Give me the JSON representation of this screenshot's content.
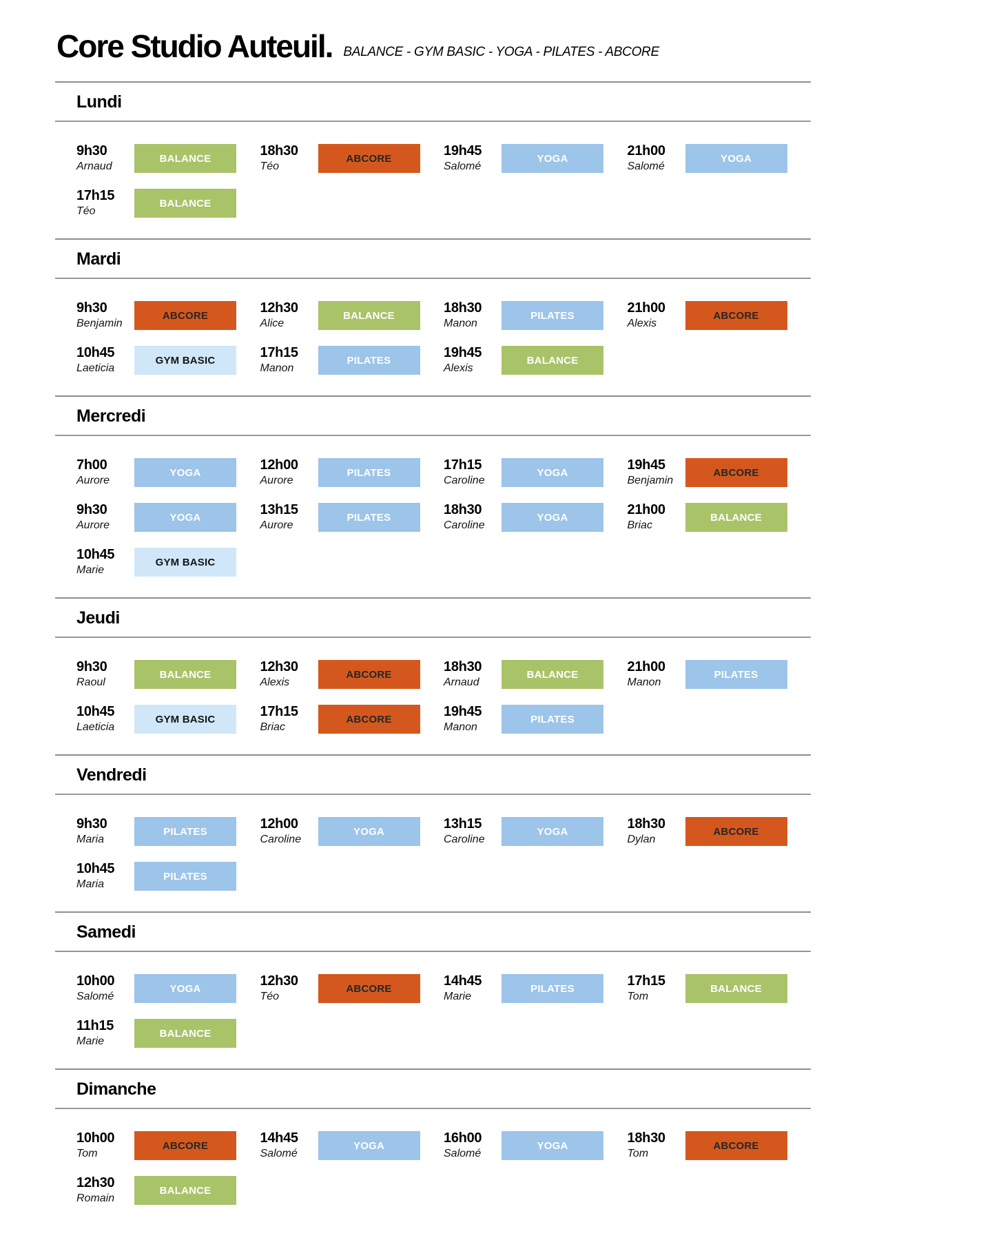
{
  "title": "Core Studio Auteuil.",
  "subtitle": "BALANCE - GYM BASIC - YOGA - PILATES - ABCORE",
  "class_types": {
    "BALANCE": {
      "bg": "#a9c369",
      "fg": "#ffffff"
    },
    "GYM BASIC": {
      "bg": "#cfe7f9",
      "fg": "#141414"
    },
    "YOGA": {
      "bg": "#9dc4e9",
      "fg": "#ffffff"
    },
    "PILATES": {
      "bg": "#9dc4e9",
      "fg": "#ffffff"
    },
    "ABCORE": {
      "bg": "#d4581d",
      "fg": "#262626"
    }
  },
  "rule_color": "#8e8e8e",
  "days": [
    {
      "name": "Lundi",
      "entries": [
        {
          "time": "9h30",
          "instructor": "Arnaud",
          "class": "BALANCE"
        },
        {
          "time": "18h30",
          "instructor": "Téo",
          "class": "ABCORE"
        },
        {
          "time": "19h45",
          "instructor": "Salomé",
          "class": "YOGA"
        },
        {
          "time": "21h00",
          "instructor": "Salomé",
          "class": "YOGA"
        },
        {
          "time": "17h15",
          "instructor": "Téo",
          "class": "BALANCE"
        }
      ]
    },
    {
      "name": "Mardi",
      "entries": [
        {
          "time": "9h30",
          "instructor": "Benjamin",
          "class": "ABCORE"
        },
        {
          "time": "12h30",
          "instructor": "Alice",
          "class": "BALANCE"
        },
        {
          "time": "18h30",
          "instructor": "Manon",
          "class": "PILATES"
        },
        {
          "time": "21h00",
          "instructor": "Alexis",
          "class": "ABCORE"
        },
        {
          "time": "10h45",
          "instructor": "Laeticia",
          "class": "GYM BASIC"
        },
        {
          "time": "17h15",
          "instructor": "Manon",
          "class": "PILATES"
        },
        {
          "time": "19h45",
          "instructor": "Alexis",
          "class": "BALANCE"
        }
      ]
    },
    {
      "name": "Mercredi",
      "entries": [
        {
          "time": "7h00",
          "instructor": "Aurore",
          "class": "YOGA"
        },
        {
          "time": "12h00",
          "instructor": "Aurore",
          "class": "PILATES"
        },
        {
          "time": "17h15",
          "instructor": "Caroline",
          "class": "YOGA"
        },
        {
          "time": "19h45",
          "instructor": "Benjamin",
          "class": "ABCORE"
        },
        {
          "time": "9h30",
          "instructor": "Aurore",
          "class": "YOGA"
        },
        {
          "time": "13h15",
          "instructor": "Aurore",
          "class": "PILATES"
        },
        {
          "time": "18h30",
          "instructor": "Caroline",
          "class": "YOGA"
        },
        {
          "time": "21h00",
          "instructor": "Briac",
          "class": "BALANCE"
        },
        {
          "time": "10h45",
          "instructor": "Marie",
          "class": "GYM BASIC"
        }
      ]
    },
    {
      "name": "Jeudi",
      "entries": [
        {
          "time": "9h30",
          "instructor": "Raoul",
          "class": "BALANCE"
        },
        {
          "time": "12h30",
          "instructor": "Alexis",
          "class": "ABCORE"
        },
        {
          "time": "18h30",
          "instructor": "Arnaud",
          "class": "BALANCE"
        },
        {
          "time": "21h00",
          "instructor": "Manon",
          "class": "PILATES"
        },
        {
          "time": "10h45",
          "instructor": "Laeticia",
          "class": "GYM BASIC"
        },
        {
          "time": "17h15",
          "instructor": "Briac",
          "class": "ABCORE"
        },
        {
          "time": "19h45",
          "instructor": "Manon",
          "class": "PILATES"
        }
      ]
    },
    {
      "name": "Vendredi",
      "entries": [
        {
          "time": "9h30",
          "instructor": "Maria",
          "class": "PILATES"
        },
        {
          "time": "12h00",
          "instructor": "Caroline",
          "class": "YOGA"
        },
        {
          "time": "13h15",
          "instructor": "Caroline",
          "class": "YOGA"
        },
        {
          "time": "18h30",
          "instructor": "Dylan",
          "class": "ABCORE"
        },
        {
          "time": "10h45",
          "instructor": "Maria",
          "class": "PILATES"
        }
      ]
    },
    {
      "name": "Samedi",
      "entries": [
        {
          "time": "10h00",
          "instructor": "Salomé",
          "class": "YOGA"
        },
        {
          "time": "12h30",
          "instructor": "Téo",
          "class": "ABCORE"
        },
        {
          "time": "14h45",
          "instructor": "Marie",
          "class": "PILATES"
        },
        {
          "time": "17h15",
          "instructor": "Tom",
          "class": "BALANCE"
        },
        {
          "time": "11h15",
          "instructor": "Marie",
          "class": "BALANCE"
        }
      ]
    },
    {
      "name": "Dimanche",
      "entries": [
        {
          "time": "10h00",
          "instructor": "Tom",
          "class": "ABCORE"
        },
        {
          "time": "14h45",
          "instructor": "Salomé",
          "class": "YOGA"
        },
        {
          "time": "16h00",
          "instructor": "Salomé",
          "class": "YOGA"
        },
        {
          "time": "18h30",
          "instructor": "Tom",
          "class": "ABCORE"
        },
        {
          "time": "12h30",
          "instructor": "Romain",
          "class": "BALANCE"
        }
      ]
    }
  ]
}
